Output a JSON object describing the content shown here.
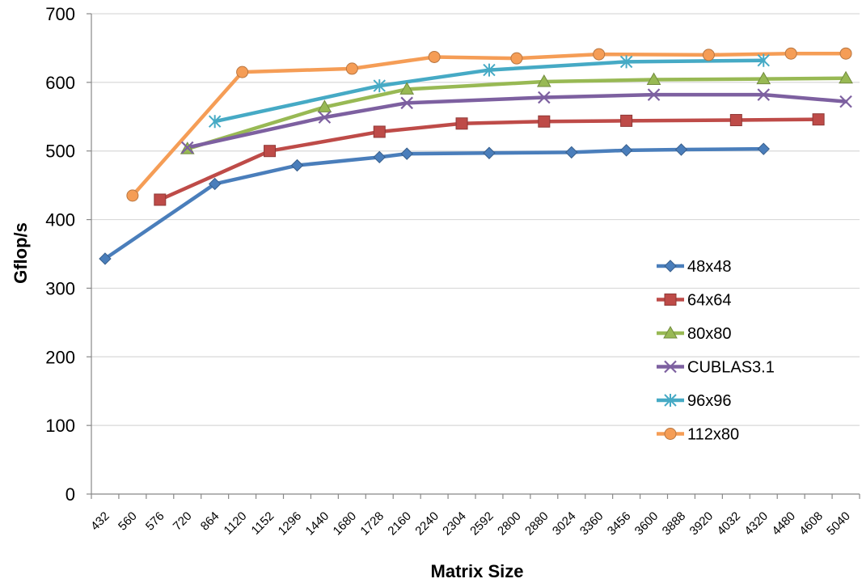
{
  "chart_data": {
    "type": "line",
    "title": "",
    "xlabel": "Matrix Size",
    "ylabel": "Gflop/s",
    "categories": [
      "432",
      "560",
      "576",
      "720",
      "864",
      "1120",
      "1152",
      "1296",
      "1440",
      "1680",
      "1728",
      "2160",
      "2240",
      "2304",
      "2592",
      "2800",
      "2880",
      "3024",
      "3360",
      "3456",
      "3600",
      "3888",
      "3920",
      "4032",
      "4320",
      "4480",
      "4608",
      "5040"
    ],
    "yticks": [
      "0",
      "100",
      "200",
      "300",
      "400",
      "500",
      "600",
      "700"
    ],
    "ylim": [
      0,
      700
    ],
    "grid": true,
    "legend_position": "right",
    "series": [
      {
        "name": "48x48",
        "color": "#4a7ebb",
        "marker": "diamond",
        "x": [
          "432",
          "864",
          "1296",
          "1728",
          "2160",
          "2592",
          "3024",
          "3456",
          "3888",
          "4320"
        ],
        "values": [
          343,
          452,
          479,
          491,
          496,
          497,
          498,
          501,
          502,
          503
        ]
      },
      {
        "name": "64x64",
        "color": "#be4b48",
        "marker": "square",
        "x": [
          "576",
          "1152",
          "1728",
          "2304",
          "2880",
          "3456",
          "4032",
          "4608"
        ],
        "values": [
          429,
          500,
          528,
          540,
          543,
          544,
          545,
          546
        ]
      },
      {
        "name": "80x80",
        "color": "#98b954",
        "marker": "triangle",
        "x": [
          "720",
          "1440",
          "2160",
          "2880",
          "3600",
          "4320",
          "5040"
        ],
        "values": [
          503,
          564,
          590,
          601,
          604,
          605,
          606
        ]
      },
      {
        "name": "CUBLAS3.1",
        "color": "#7d60a0",
        "marker": "x",
        "x": [
          "720",
          "1440",
          "2160",
          "2880",
          "3600",
          "4320",
          "5040"
        ],
        "values": [
          505,
          549,
          570,
          578,
          582,
          582,
          572
        ]
      },
      {
        "name": "96x96",
        "color": "#46aac5",
        "marker": "star",
        "x": [
          "864",
          "1728",
          "2592",
          "3456",
          "4320"
        ],
        "values": [
          543,
          595,
          618,
          630,
          632
        ]
      },
      {
        "name": "112x80",
        "color": "#f59d56",
        "marker": "circle",
        "x": [
          "560",
          "1120",
          "1680",
          "2240",
          "2800",
          "3360",
          "3920",
          "4480",
          "5040"
        ],
        "values": [
          435,
          615,
          620,
          637,
          635,
          641,
          640,
          642,
          642
        ]
      }
    ]
  }
}
